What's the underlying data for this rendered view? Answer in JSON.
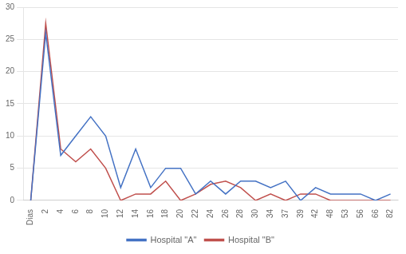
{
  "chart_data": {
    "type": "line",
    "categories": [
      "Dias",
      "2",
      "4",
      "6",
      "8",
      "10",
      "12",
      "14",
      "16",
      "18",
      "20",
      "22",
      "24",
      "26",
      "28",
      "30",
      "34",
      "37",
      "39",
      "42",
      "48",
      "53",
      "56",
      "66",
      "82"
    ],
    "series": [
      {
        "name": "Hospital \"A\"",
        "color": "#4472C4",
        "values": [
          0,
          26,
          7,
          10,
          13,
          10,
          2,
          8,
          2,
          5,
          5,
          1,
          3,
          1,
          3,
          3,
          2,
          3,
          0,
          2,
          1,
          1,
          1,
          0,
          1
        ]
      },
      {
        "name": "Hospital \"B\"",
        "color": "#C0504D",
        "values": [
          0,
          27.5,
          8,
          6,
          8,
          5,
          0,
          1,
          1,
          3,
          0,
          1,
          2.5,
          3,
          2,
          0,
          1,
          0,
          1,
          1,
          0,
          0,
          0,
          0,
          0
        ]
      }
    ],
    "ylim": [
      0,
      30
    ],
    "yticks": [
      0,
      5,
      10,
      15,
      20,
      25,
      30
    ],
    "grid": true,
    "legend": "bottom"
  }
}
